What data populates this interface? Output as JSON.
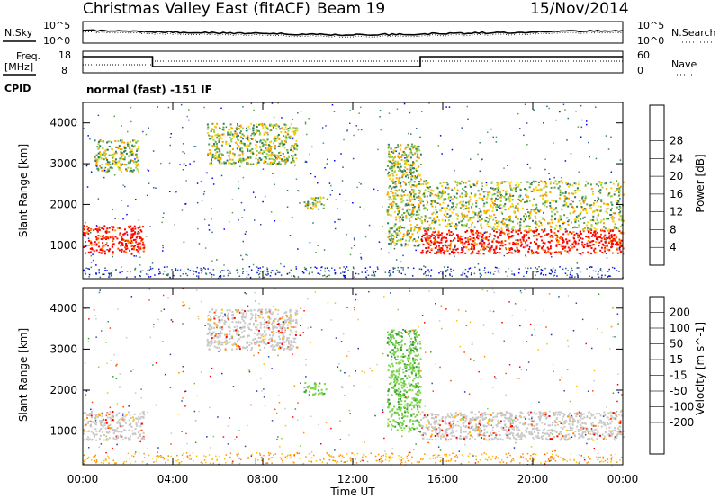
{
  "header": {
    "title": "Christmas Valley East (fitACF)",
    "beam": "Beam 19",
    "date": "15/Nov/2014"
  },
  "noise_panel": {
    "left_label": "N.Sky",
    "left_ticks": [
      "10^5",
      "10^0"
    ],
    "right_label": "N.Search",
    "right_ticks": [
      "10^5",
      "10^0"
    ]
  },
  "freq_panel": {
    "left_label_line1": "Freq.",
    "left_label_line2": "[MHz]",
    "left_ticks": [
      "18",
      "8"
    ],
    "right_label": "Nave",
    "right_ticks": [
      "60",
      "0"
    ]
  },
  "cpid": {
    "label": "CPID",
    "text": "normal (fast) -151 IF"
  },
  "colors": {
    "power": [
      "#0000ff",
      "#2a4fb0",
      "#2f7a5e",
      "#5aa050",
      "#9cd34a",
      "#ffd400",
      "#ff9f00",
      "#ff5a00",
      "#ff0000"
    ],
    "velocity": [
      "#ff0000",
      "#ff4800",
      "#ff8c00",
      "#ffc000",
      "#c8c8c8",
      "#c8c8c8",
      "#7cd64a",
      "#3a9a3a",
      "#2a4fa0",
      "#1e2fb0"
    ]
  },
  "chart_data": [
    {
      "type": "heatmap",
      "title": "",
      "xlabel": "",
      "ylabel": "Slant Range [km]",
      "x_ticks": [
        "00:00",
        "04:00",
        "08:00",
        "12:00",
        "16:00",
        "20:00",
        "00:00"
      ],
      "y_ticks": [
        "1000",
        "2000",
        "3000",
        "4000"
      ],
      "ylim": [
        180,
        4500
      ],
      "colorbar_label": "Power [dB]",
      "colorbar_ticks": [
        "4",
        "8",
        "12",
        "16",
        "20",
        "24",
        "28"
      ],
      "regions_hours_km": [
        {
          "x0": 0.0,
          "x1": 2.7,
          "y0": 800,
          "y1": 1500,
          "level": "high"
        },
        {
          "x0": 0.5,
          "x1": 2.5,
          "y0": 2800,
          "y1": 3600,
          "level": "mid"
        },
        {
          "x0": 5.5,
          "x1": 9.5,
          "y0": 3000,
          "y1": 4000,
          "level": "mid"
        },
        {
          "x0": 9.8,
          "x1": 10.8,
          "y0": 1900,
          "y1": 2200,
          "level": "mid"
        },
        {
          "x0": 13.5,
          "x1": 15.0,
          "y0": 1000,
          "y1": 3500,
          "level": "mid"
        },
        {
          "x0": 15.0,
          "x1": 24.0,
          "y0": 800,
          "y1": 1400,
          "level": "high"
        },
        {
          "x0": 15.0,
          "x1": 24.0,
          "y0": 1400,
          "y1": 2600,
          "level": "mid"
        }
      ]
    },
    {
      "type": "heatmap",
      "title": "",
      "xlabel": "Time UT",
      "ylabel": "Slant Range [km]",
      "x_ticks": [
        "00:00",
        "04:00",
        "08:00",
        "12:00",
        "16:00",
        "20:00",
        "00:00"
      ],
      "y_ticks": [
        "1000",
        "2000",
        "3000",
        "4000"
      ],
      "ylim": [
        180,
        4500
      ],
      "colorbar_label": "Velocity [m s^-1]",
      "colorbar_ticks": [
        "200",
        "100",
        "50",
        "15",
        "-15",
        "-50",
        "-100",
        "-200"
      ],
      "regions_hours_km": [
        {
          "x0": 0.0,
          "x1": 2.7,
          "y0": 800,
          "y1": 1500,
          "level": "ground"
        },
        {
          "x0": 5.5,
          "x1": 9.5,
          "y0": 3000,
          "y1": 4000,
          "level": "ground"
        },
        {
          "x0": 9.8,
          "x1": 10.8,
          "y0": 1900,
          "y1": 2200,
          "level": "positive"
        },
        {
          "x0": 13.5,
          "x1": 15.0,
          "y0": 1000,
          "y1": 3500,
          "level": "positive"
        },
        {
          "x0": 15.0,
          "x1": 24.0,
          "y0": 800,
          "y1": 1500,
          "level": "ground"
        }
      ]
    }
  ]
}
